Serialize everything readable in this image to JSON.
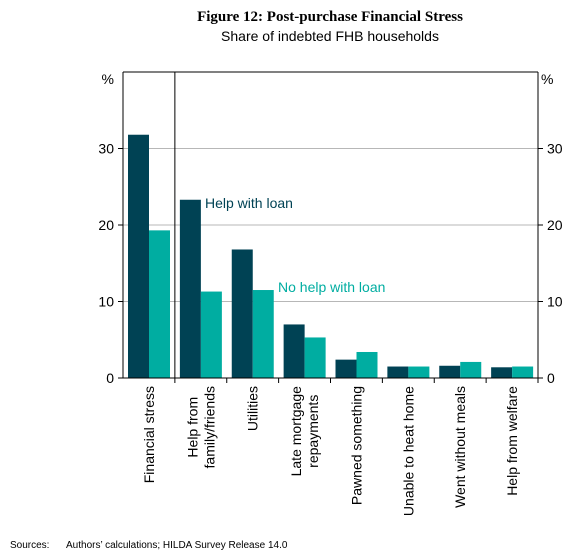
{
  "title": "Figure 12: Post-purchase Financial Stress",
  "subtitle": "Share of indebted FHB households",
  "sources_label": "Sources:",
  "sources_text": "Authors’ calculations; HILDA Survey Release 14.0",
  "colors": {
    "help": "#004254",
    "nohelp": "#00ada1",
    "grid": "#b7b7b7"
  },
  "chart_data": {
    "type": "bar",
    "categories": [
      "Financial stress",
      "Help from family/friends",
      "Utilities",
      "Late mortgage repayments",
      "Pawned something",
      "Unable to heat home",
      "Went without meals",
      "Help from welfare"
    ],
    "category_lines": [
      [
        "Financial stress"
      ],
      [
        "Help from",
        "family/friends"
      ],
      [
        "Utilities"
      ],
      [
        "Late mortgage",
        "repayments"
      ],
      [
        "Pawned something"
      ],
      [
        "Unable to heat home"
      ],
      [
        "Went without meals"
      ],
      [
        "Help from welfare"
      ]
    ],
    "series": [
      {
        "name": "Help with loan",
        "values": [
          31.8,
          23.3,
          16.8,
          7.0,
          2.4,
          1.5,
          1.6,
          1.4
        ]
      },
      {
        "name": "No help with loan",
        "values": [
          19.3,
          11.3,
          11.5,
          5.3,
          3.4,
          1.5,
          2.1,
          1.5
        ]
      }
    ],
    "ylim": [
      0,
      40
    ],
    "yticks": [
      0,
      10,
      20,
      30
    ],
    "y_unit": "%",
    "grid": true
  }
}
